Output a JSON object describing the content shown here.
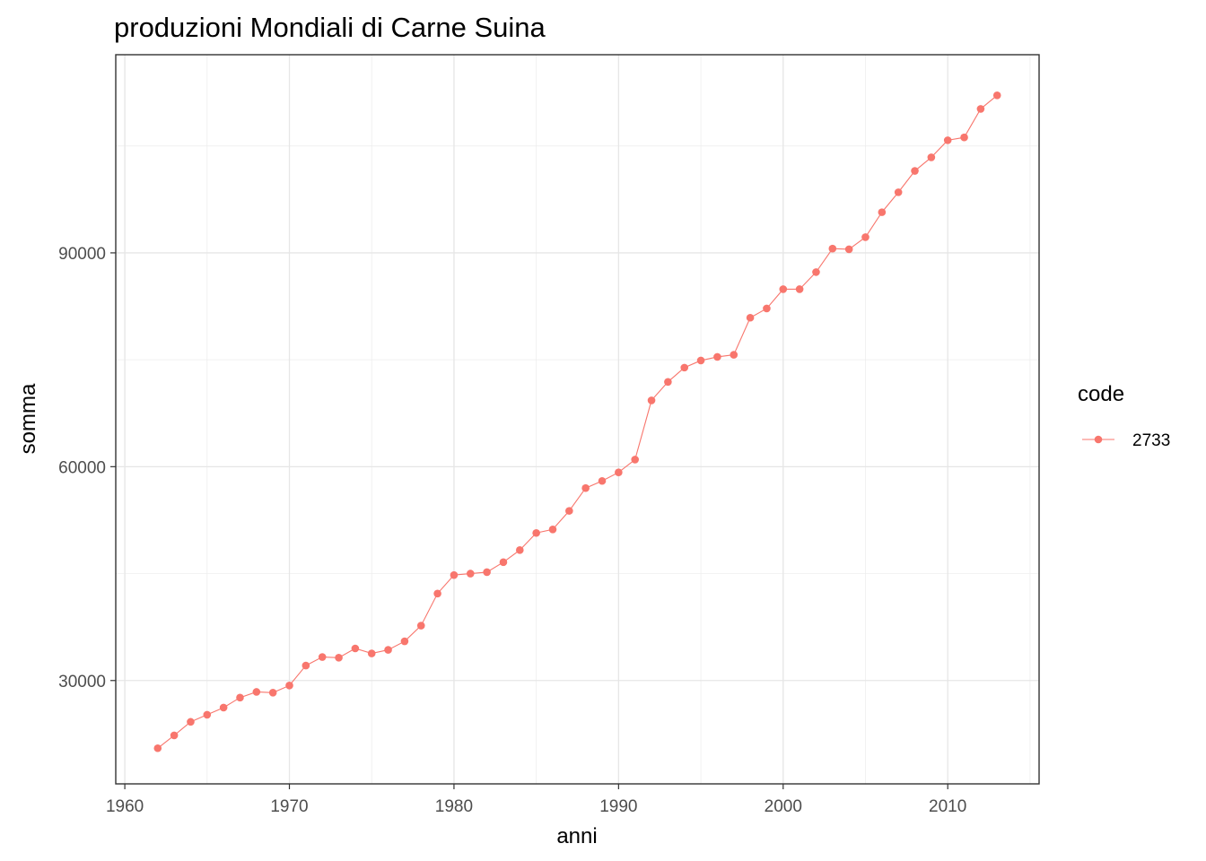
{
  "chart_data": {
    "type": "line",
    "title": "produzioni Mondiali di Carne Suina",
    "xlabel": "anni",
    "ylabel": "somma",
    "x_ticks": [
      1960,
      1970,
      1980,
      1990,
      2000,
      2010
    ],
    "y_ticks": [
      30000,
      60000,
      90000
    ],
    "xlim": [
      1959.45,
      2015.55
    ],
    "ylim": [
      15500,
      117800
    ],
    "grid": true,
    "legend": {
      "title": "code",
      "placement": "right"
    },
    "series": [
      {
        "name": "2733",
        "color": "#F8766D",
        "x": [
          1962,
          1963,
          1964,
          1965,
          1966,
          1967,
          1968,
          1969,
          1970,
          1971,
          1972,
          1973,
          1974,
          1975,
          1976,
          1977,
          1978,
          1979,
          1980,
          1981,
          1982,
          1983,
          1984,
          1985,
          1986,
          1987,
          1988,
          1989,
          1990,
          1991,
          1992,
          1993,
          1994,
          1995,
          1996,
          1997,
          1998,
          1999,
          2000,
          2001,
          2002,
          2003,
          2004,
          2005,
          2006,
          2007,
          2008,
          2009,
          2010,
          2011,
          2012,
          2013
        ],
        "values": [
          20500,
          22300,
          24200,
          25200,
          26200,
          27600,
          28400,
          28300,
          29300,
          32100,
          33300,
          33200,
          34500,
          33800,
          34300,
          35500,
          37700,
          42200,
          44800,
          45000,
          45200,
          46600,
          48300,
          50700,
          51200,
          53800,
          57000,
          58000,
          59200,
          61000,
          69300,
          71900,
          73900,
          74900,
          75400,
          75700,
          80900,
          82200,
          84900,
          84900,
          87300,
          90600,
          90500,
          92200,
          95700,
          98500,
          101500,
          103400,
          105800,
          106200,
          110200,
          112100
        ]
      }
    ]
  }
}
